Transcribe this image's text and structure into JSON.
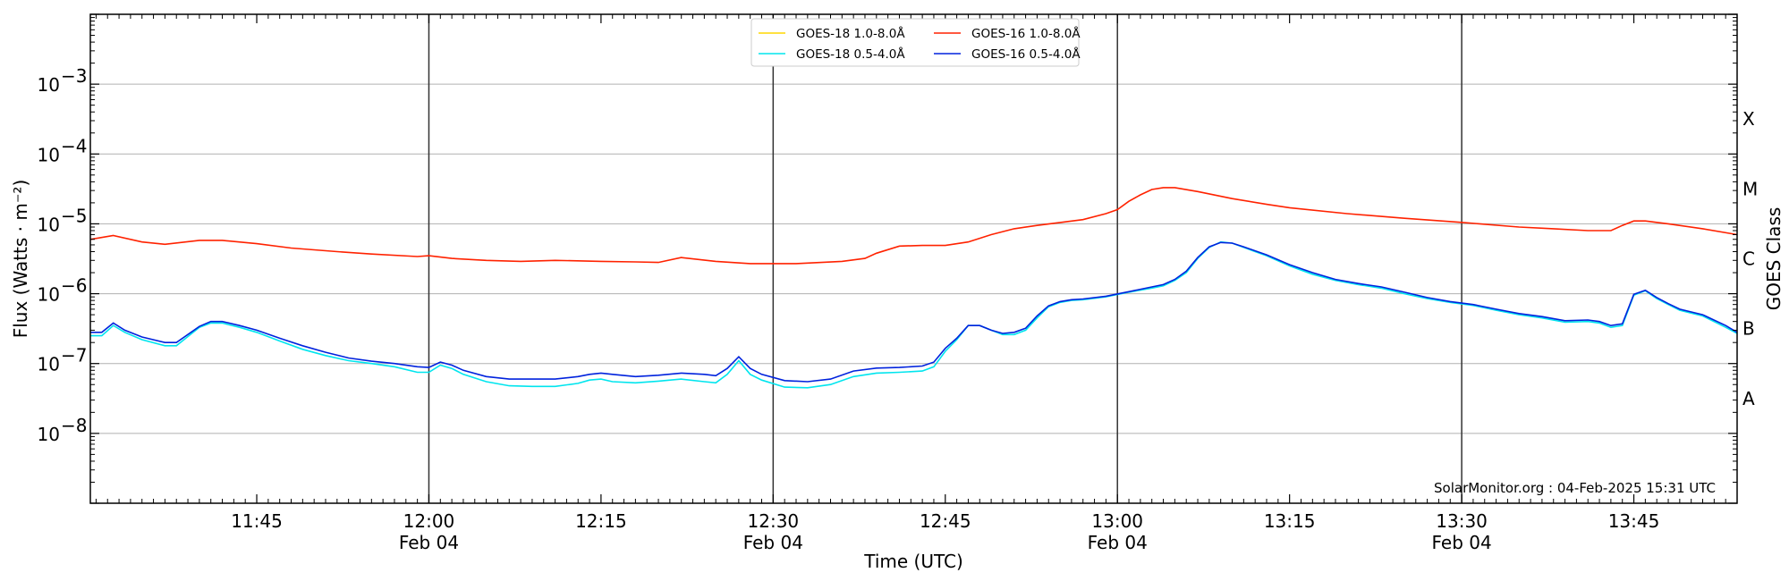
{
  "chart_data": {
    "type": "line",
    "xlabel": "Time (UTC)",
    "ylabel": "Flux (Watts · m⁻²)",
    "y2label": "GOES Class",
    "yscale": "log",
    "ylim": [
      1e-09,
      0.01
    ],
    "xlim_minutes": [
      690.5,
      834
    ],
    "grid": "horizontal",
    "legend_position": "top-center",
    "watermark": "SolarMonitor.org : 04-Feb-2025 15:31 UTC",
    "x_ticks": [
      {
        "t": 705,
        "label": "11:45"
      },
      {
        "t": 720,
        "label": "12:00",
        "sub": "Feb 04"
      },
      {
        "t": 735,
        "label": "12:15"
      },
      {
        "t": 750,
        "label": "12:30",
        "sub": "Feb 04"
      },
      {
        "t": 765,
        "label": "12:45"
      },
      {
        "t": 780,
        "label": "13:00",
        "sub": "Feb 04"
      },
      {
        "t": 795,
        "label": "13:15"
      },
      {
        "t": 810,
        "label": "13:30",
        "sub": "Feb 04"
      },
      {
        "t": 825,
        "label": "13:45"
      }
    ],
    "vlines": [
      720,
      750,
      780,
      810
    ],
    "y_ticks": [
      {
        "exp": -8,
        "label": "10",
        "sup": "−8"
      },
      {
        "exp": -7,
        "label": "10",
        "sup": "−7"
      },
      {
        "exp": -6,
        "label": "10",
        "sup": "−6"
      },
      {
        "exp": -5,
        "label": "10",
        "sup": "−5"
      },
      {
        "exp": -4,
        "label": "10",
        "sup": "−4"
      },
      {
        "exp": -3,
        "label": "10",
        "sup": "−3"
      }
    ],
    "class_labels": [
      {
        "label": "A",
        "exp": -7.5
      },
      {
        "label": "B",
        "exp": -6.5
      },
      {
        "label": "C",
        "exp": -5.5
      },
      {
        "label": "M",
        "exp": -4.5
      },
      {
        "label": "X",
        "exp": -3.5
      }
    ],
    "series": [
      {
        "name": "GOES-18 1.0-8.0Å",
        "color": "#ffd700",
        "points": []
      },
      {
        "name": "GOES-16 1.0-8.0Å",
        "color": "#ff2200",
        "points": [
          [
            690.5,
            6e-06
          ],
          [
            692.5,
            6.8e-06
          ],
          [
            695,
            5.5e-06
          ],
          [
            697,
            5.1e-06
          ],
          [
            700,
            5.8e-06
          ],
          [
            702,
            5.8e-06
          ],
          [
            705,
            5.2e-06
          ],
          [
            708,
            4.5e-06
          ],
          [
            712,
            4e-06
          ],
          [
            715,
            3.7e-06
          ],
          [
            719,
            3.4e-06
          ],
          [
            720,
            3.5e-06
          ],
          [
            722,
            3.2e-06
          ],
          [
            725,
            3e-06
          ],
          [
            728,
            2.9e-06
          ],
          [
            731,
            3e-06
          ],
          [
            735,
            2.9e-06
          ],
          [
            738,
            2.85e-06
          ],
          [
            740,
            2.8e-06
          ],
          [
            742,
            3.3e-06
          ],
          [
            745,
            2.9e-06
          ],
          [
            748,
            2.7e-06
          ],
          [
            752,
            2.7e-06
          ],
          [
            756,
            2.9e-06
          ],
          [
            758,
            3.2e-06
          ],
          [
            759,
            3.8e-06
          ],
          [
            761,
            4.8e-06
          ],
          [
            763,
            4.9e-06
          ],
          [
            765,
            4.9e-06
          ],
          [
            767,
            5.5e-06
          ],
          [
            769,
            7e-06
          ],
          [
            771,
            8.5e-06
          ],
          [
            773,
            9.5e-06
          ],
          [
            777,
            1.15e-05
          ],
          [
            779,
            1.4e-05
          ],
          [
            780,
            1.6e-05
          ],
          [
            781,
            2.1e-05
          ],
          [
            782,
            2.6e-05
          ],
          [
            783,
            3.1e-05
          ],
          [
            784,
            3.3e-05
          ],
          [
            785,
            3.3e-05
          ],
          [
            787,
            2.9e-05
          ],
          [
            790,
            2.3e-05
          ],
          [
            793,
            1.9e-05
          ],
          [
            795,
            1.7e-05
          ],
          [
            800,
            1.4e-05
          ],
          [
            805,
            1.2e-05
          ],
          [
            810,
            1.05e-05
          ],
          [
            815,
            9e-06
          ],
          [
            818,
            8.5e-06
          ],
          [
            821,
            8e-06
          ],
          [
            823,
            8e-06
          ],
          [
            824,
            9.5e-06
          ],
          [
            825,
            1.1e-05
          ],
          [
            826,
            1.1e-05
          ],
          [
            828,
            1e-05
          ],
          [
            831,
            8.5e-06
          ],
          [
            834,
            7e-06
          ]
        ]
      },
      {
        "name": "GOES-18 0.5-4.0Å",
        "color": "#00e5ee",
        "points": [
          [
            690.5,
            2.5e-07
          ],
          [
            691.5,
            2.5e-07
          ],
          [
            692.5,
            3.5e-07
          ],
          [
            693.5,
            2.8e-07
          ],
          [
            695,
            2.2e-07
          ],
          [
            697,
            1.8e-07
          ],
          [
            698,
            1.8e-07
          ],
          [
            700,
            3.3e-07
          ],
          [
            701,
            3.8e-07
          ],
          [
            702,
            3.8e-07
          ],
          [
            703.5,
            3.3e-07
          ],
          [
            705,
            2.8e-07
          ],
          [
            707,
            2.1e-07
          ],
          [
            709,
            1.6e-07
          ],
          [
            711,
            1.3e-07
          ],
          [
            713,
            1.1e-07
          ],
          [
            715,
            1e-07
          ],
          [
            717,
            9e-08
          ],
          [
            719,
            7.5e-08
          ],
          [
            720,
            7.5e-08
          ],
          [
            721,
            9.5e-08
          ],
          [
            722,
            8.5e-08
          ],
          [
            723,
            7e-08
          ],
          [
            725,
            5.5e-08
          ],
          [
            727,
            4.8e-08
          ],
          [
            729,
            4.7e-08
          ],
          [
            731,
            4.7e-08
          ],
          [
            733,
            5.2e-08
          ],
          [
            734,
            5.8e-08
          ],
          [
            735,
            6e-08
          ],
          [
            736,
            5.5e-08
          ],
          [
            738,
            5.3e-08
          ],
          [
            740,
            5.6e-08
          ],
          [
            742,
            6e-08
          ],
          [
            744,
            5.5e-08
          ],
          [
            745,
            5.3e-08
          ],
          [
            746,
            7e-08
          ],
          [
            747,
            1.1e-07
          ],
          [
            748,
            7e-08
          ],
          [
            749,
            5.8e-08
          ],
          [
            751,
            4.6e-08
          ],
          [
            753,
            4.5e-08
          ],
          [
            755,
            5e-08
          ],
          [
            757,
            6.5e-08
          ],
          [
            759,
            7.3e-08
          ],
          [
            761,
            7.5e-08
          ],
          [
            763,
            7.8e-08
          ],
          [
            764,
            9e-08
          ],
          [
            765,
            1.5e-07
          ],
          [
            766,
            2.2e-07
          ],
          [
            767,
            3.5e-07
          ],
          [
            768,
            3.5e-07
          ],
          [
            769,
            3e-07
          ],
          [
            770,
            2.6e-07
          ],
          [
            771,
            2.6e-07
          ],
          [
            772,
            3e-07
          ],
          [
            773,
            4.5e-07
          ],
          [
            774,
            6.5e-07
          ],
          [
            775,
            7.5e-07
          ],
          [
            776,
            8e-07
          ],
          [
            777,
            8.2e-07
          ],
          [
            779,
            9e-07
          ],
          [
            781,
            1.05e-06
          ],
          [
            783,
            1.2e-06
          ],
          [
            784,
            1.3e-06
          ],
          [
            785,
            1.55e-06
          ],
          [
            786,
            2e-06
          ],
          [
            787,
            3.2e-06
          ],
          [
            788,
            4.6e-06
          ],
          [
            789,
            5.5e-06
          ],
          [
            790,
            5.3e-06
          ],
          [
            791,
            4.6e-06
          ],
          [
            793,
            3.5e-06
          ],
          [
            795,
            2.5e-06
          ],
          [
            797,
            1.9e-06
          ],
          [
            799,
            1.55e-06
          ],
          [
            801,
            1.35e-06
          ],
          [
            803,
            1.2e-06
          ],
          [
            805,
            1e-06
          ],
          [
            807,
            8.5e-07
          ],
          [
            809,
            7.5e-07
          ],
          [
            811,
            6.8e-07
          ],
          [
            813,
            5.8e-07
          ],
          [
            815,
            5e-07
          ],
          [
            817,
            4.5e-07
          ],
          [
            819,
            3.9e-07
          ],
          [
            821,
            4e-07
          ],
          [
            822,
            3.8e-07
          ],
          [
            823,
            3.3e-07
          ],
          [
            824,
            3.5e-07
          ],
          [
            825,
            9.5e-07
          ],
          [
            826,
            1.1e-06
          ],
          [
            827,
            8.5e-07
          ],
          [
            828,
            7e-07
          ],
          [
            829,
            5.8e-07
          ],
          [
            831,
            4.8e-07
          ],
          [
            833,
            3.3e-07
          ],
          [
            834,
            2.7e-07
          ]
        ]
      },
      {
        "name": "GOES-16 0.5-4.0Å",
        "color": "#0022dd",
        "points": [
          [
            690.5,
            2.8e-07
          ],
          [
            691.5,
            2.8e-07
          ],
          [
            692.5,
            3.8e-07
          ],
          [
            693.5,
            3e-07
          ],
          [
            695,
            2.4e-07
          ],
          [
            697,
            2e-07
          ],
          [
            698,
            2e-07
          ],
          [
            700,
            3.4e-07
          ],
          [
            701,
            4e-07
          ],
          [
            702,
            4e-07
          ],
          [
            703.5,
            3.5e-07
          ],
          [
            705,
            3e-07
          ],
          [
            707,
            2.3e-07
          ],
          [
            709,
            1.8e-07
          ],
          [
            711,
            1.45e-07
          ],
          [
            713,
            1.2e-07
          ],
          [
            715,
            1.08e-07
          ],
          [
            717,
            1e-07
          ],
          [
            719,
            9e-08
          ],
          [
            720,
            8.8e-08
          ],
          [
            721,
            1.05e-07
          ],
          [
            722,
            9.5e-08
          ],
          [
            723,
            8e-08
          ],
          [
            725,
            6.5e-08
          ],
          [
            727,
            6e-08
          ],
          [
            729,
            6e-08
          ],
          [
            731,
            6e-08
          ],
          [
            733,
            6.5e-08
          ],
          [
            734,
            7e-08
          ],
          [
            735,
            7.3e-08
          ],
          [
            736,
            7e-08
          ],
          [
            738,
            6.5e-08
          ],
          [
            740,
            6.8e-08
          ],
          [
            742,
            7.3e-08
          ],
          [
            744,
            7e-08
          ],
          [
            745,
            6.7e-08
          ],
          [
            746,
            8.5e-08
          ],
          [
            747,
            1.25e-07
          ],
          [
            748,
            8.5e-08
          ],
          [
            749,
            7e-08
          ],
          [
            751,
            5.7e-08
          ],
          [
            753,
            5.5e-08
          ],
          [
            755,
            6e-08
          ],
          [
            757,
            7.8e-08
          ],
          [
            759,
            8.6e-08
          ],
          [
            761,
            8.8e-08
          ],
          [
            763,
            9.2e-08
          ],
          [
            764,
            1.05e-07
          ],
          [
            765,
            1.65e-07
          ],
          [
            766,
            2.3e-07
          ],
          [
            767,
            3.5e-07
          ],
          [
            768,
            3.5e-07
          ],
          [
            769,
            3e-07
          ],
          [
            770,
            2.7e-07
          ],
          [
            771,
            2.8e-07
          ],
          [
            772,
            3.2e-07
          ],
          [
            773,
            4.8e-07
          ],
          [
            774,
            6.7e-07
          ],
          [
            775,
            7.7e-07
          ],
          [
            776,
            8.2e-07
          ],
          [
            777,
            8.4e-07
          ],
          [
            779,
            9.2e-07
          ],
          [
            781,
            1.07e-06
          ],
          [
            783,
            1.25e-06
          ],
          [
            784,
            1.35e-06
          ],
          [
            785,
            1.6e-06
          ],
          [
            786,
            2.1e-06
          ],
          [
            787,
            3.3e-06
          ],
          [
            788,
            4.7e-06
          ],
          [
            789,
            5.4e-06
          ],
          [
            790,
            5.3e-06
          ],
          [
            791,
            4.7e-06
          ],
          [
            793,
            3.6e-06
          ],
          [
            795,
            2.6e-06
          ],
          [
            797,
            2e-06
          ],
          [
            799,
            1.6e-06
          ],
          [
            801,
            1.4e-06
          ],
          [
            803,
            1.25e-06
          ],
          [
            805,
            1.05e-06
          ],
          [
            807,
            8.8e-07
          ],
          [
            809,
            7.7e-07
          ],
          [
            811,
            7e-07
          ],
          [
            813,
            6e-07
          ],
          [
            815,
            5.2e-07
          ],
          [
            817,
            4.7e-07
          ],
          [
            819,
            4.1e-07
          ],
          [
            821,
            4.2e-07
          ],
          [
            822,
            4e-07
          ],
          [
            823,
            3.5e-07
          ],
          [
            824,
            3.7e-07
          ],
          [
            825,
            9.8e-07
          ],
          [
            826,
            1.12e-06
          ],
          [
            827,
            8.8e-07
          ],
          [
            828,
            7.2e-07
          ],
          [
            829,
            6e-07
          ],
          [
            831,
            5e-07
          ],
          [
            833,
            3.5e-07
          ],
          [
            834,
            2.8e-07
          ]
        ]
      }
    ]
  }
}
